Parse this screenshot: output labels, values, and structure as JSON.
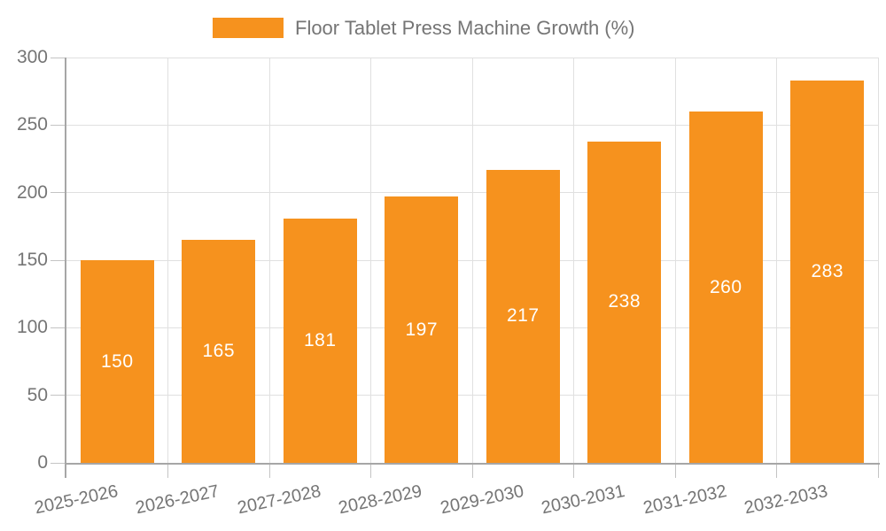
{
  "legend": {
    "label": "Floor Tablet Press Machine Growth (%)",
    "swatch_color": "#F6921E"
  },
  "chart_data": {
    "type": "bar",
    "title": "Floor Tablet Press Machine Growth (%)",
    "series_name": "Floor Tablet Press Machine Growth (%)",
    "categories": [
      "2025-2026",
      "2026-2027",
      "2027-2028",
      "2028-2029",
      "2029-2030",
      "2030-2031",
      "2031-2032",
      "2032-2033"
    ],
    "values": [
      150,
      165,
      181,
      197,
      217,
      238,
      260,
      283
    ],
    "xlabel": "",
    "ylabel": "",
    "ylim": [
      0,
      300
    ],
    "yticks": [
      0,
      50,
      100,
      150,
      200,
      250,
      300
    ],
    "grid": true,
    "legend_position": "top-center",
    "x_label_rotation_deg": -12,
    "value_labels": "inside-center",
    "colors": {
      "bar": "#F6921E",
      "value_label": "#FFFFFF",
      "axis_text": "#757575",
      "gridline": "#E0E0E0",
      "axis_line": "#A6A6A6",
      "tick": "#C4C4C4",
      "background": "#FFFFFF"
    }
  }
}
